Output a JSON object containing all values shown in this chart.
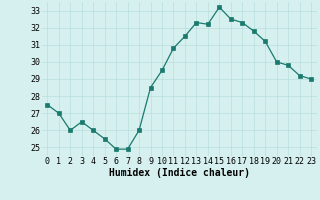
{
  "x": [
    0,
    1,
    2,
    3,
    4,
    5,
    6,
    7,
    8,
    9,
    10,
    11,
    12,
    13,
    14,
    15,
    16,
    17,
    18,
    19,
    20,
    21,
    22,
    23
  ],
  "y": [
    27.5,
    27.0,
    26.0,
    26.5,
    26.0,
    25.5,
    24.9,
    24.9,
    26.0,
    28.5,
    29.5,
    30.8,
    31.5,
    32.3,
    32.2,
    33.2,
    32.5,
    32.3,
    31.8,
    31.2,
    30.0,
    29.8,
    29.2,
    29.0
  ],
  "line_color": "#1a7a6e",
  "marker_color": "#1a7a6e",
  "bg_color": "#d6f0ef",
  "grid_color": "#b8dedd",
  "xlabel": "Humidex (Indice chaleur)",
  "xlabel_fontsize": 7,
  "tick_fontsize": 6,
  "ylim": [
    24.5,
    33.5
  ],
  "yticks": [
    25,
    26,
    27,
    28,
    29,
    30,
    31,
    32,
    33
  ],
  "xlim": [
    -0.5,
    23.5
  ],
  "xticks": [
    0,
    1,
    2,
    3,
    4,
    5,
    6,
    7,
    8,
    9,
    10,
    11,
    12,
    13,
    14,
    15,
    16,
    17,
    18,
    19,
    20,
    21,
    22,
    23
  ]
}
